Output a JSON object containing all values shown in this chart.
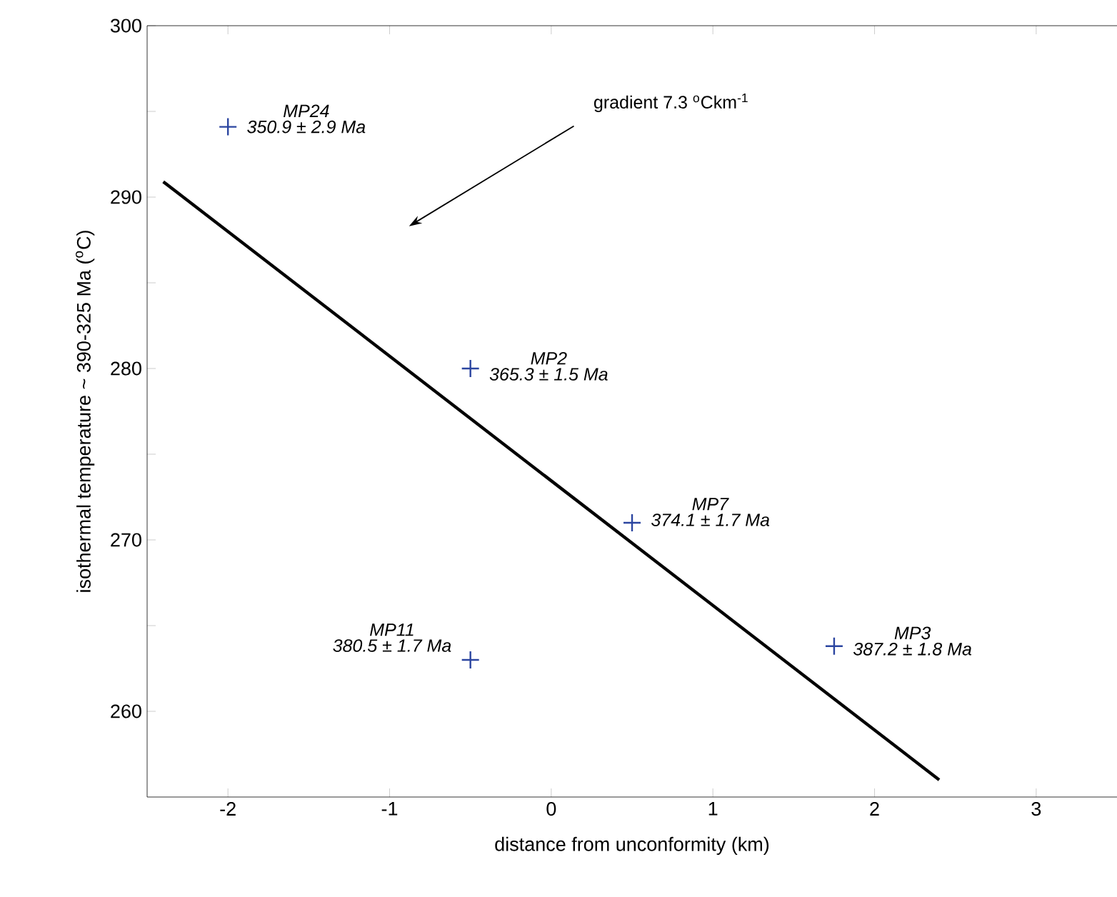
{
  "chart_data": {
    "type": "scatter",
    "xlabel": "distance from unconformity (km)",
    "ylabel": "isothermal temperature ~ 390-325 Ma ($^{o}$C)",
    "xlim": [
      -2.5,
      3.5
    ],
    "ylim": [
      255,
      300
    ],
    "xticks": [
      -2,
      -1,
      0,
      1,
      2,
      3
    ],
    "yticks": [
      260,
      {
        "value": 265,
        "label": null
      },
      270,
      {
        "value": 275,
        "label": null
      },
      280,
      {
        "value": 285,
        "label": null
      },
      290,
      {
        "value": 295,
        "label": null
      },
      300
    ],
    "marker": "cross",
    "series": [
      {
        "color": "#2b45a0",
        "x": [
          -2,
          -0.5,
          -0.5,
          0.5,
          1.75
        ],
        "values": [
          294.1,
          280,
          263.0,
          271.0,
          263.8
        ]
      },
      {
        "type": "line",
        "color": "#000000",
        "marker": "none",
        "x": [
          -2.4,
          2.4
        ],
        "values": [
          290.9,
          256.0
        ]
      }
    ],
    "annotations": [
      "gradient 7.3 $^{o}$Ckm$^{-1}$",
      "*MP24*",
      {
        "text": "*350.9 ± 2.9 Ma*",
        "x": -2,
        "y": 294.1
      },
      "*MP2*",
      {
        "text": "*365.3 ± 1.5 Ma*",
        "x": -0.5,
        "y": 280
      },
      "*MP11*",
      {
        "text": "*380.5 ± 1.7 Ma*",
        "x": -0.5,
        "y": 263.0
      },
      "*MP7*",
      {
        "text": "*374.1 ± 1.7 Ma*",
        "x": 0.5,
        "y": 271.0
      },
      "*MP3*",
      {
        "text": "*387.2 ± 1.8 Ma*",
        "x": 1.75,
        "y": 263.8
      }
    ]
  }
}
